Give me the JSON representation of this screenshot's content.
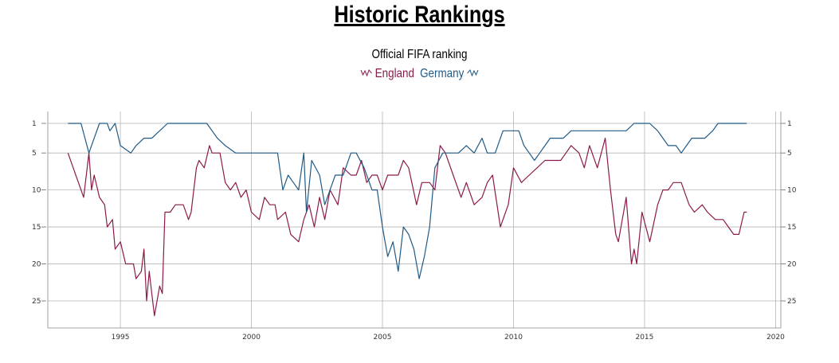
{
  "page": {
    "title": "Historic Rankings",
    "subtitle": "Official FIFA ranking",
    "legend": [
      {
        "name": "England",
        "color": "#8b1a4a",
        "icon": "wave-line-icon"
      },
      {
        "name": "Germany",
        "color": "#1f5a86",
        "icon": "wave-line-icon"
      }
    ]
  },
  "chart_data": {
    "type": "line",
    "title": "Historic Rankings",
    "subtitle": "Official FIFA ranking",
    "xlabel": "",
    "ylabel": "",
    "x_ticks": [
      "1995",
      "2000",
      "2005",
      "2010",
      "2015",
      "2020"
    ],
    "y_ticks": [
      "1",
      "5",
      "10",
      "15",
      "20",
      "25"
    ],
    "xlim": [
      1992.9,
      2020.2
    ],
    "ylim": [
      1,
      27
    ],
    "y_inverted": true,
    "grid": true,
    "legend_position": "top-center",
    "series": [
      {
        "name": "England",
        "color": "#8b1a4a",
        "points": [
          [
            1993.0,
            5
          ],
          [
            1993.6,
            11
          ],
          [
            1993.8,
            5
          ],
          [
            1993.9,
            10
          ],
          [
            1994.0,
            8
          ],
          [
            1994.2,
            11
          ],
          [
            1994.4,
            12
          ],
          [
            1994.5,
            15
          ],
          [
            1994.7,
            14
          ],
          [
            1994.8,
            18
          ],
          [
            1995.0,
            17
          ],
          [
            1995.2,
            20
          ],
          [
            1995.5,
            20
          ],
          [
            1995.6,
            22
          ],
          [
            1995.8,
            21
          ],
          [
            1995.9,
            18
          ],
          [
            1996.0,
            25
          ],
          [
            1996.1,
            21
          ],
          [
            1996.2,
            24
          ],
          [
            1996.3,
            27
          ],
          [
            1996.5,
            23
          ],
          [
            1996.6,
            24
          ],
          [
            1996.7,
            13
          ],
          [
            1996.9,
            13
          ],
          [
            1997.1,
            12
          ],
          [
            1997.4,
            12
          ],
          [
            1997.6,
            14
          ],
          [
            1997.7,
            13
          ],
          [
            1997.9,
            7
          ],
          [
            1998.0,
            6
          ],
          [
            1998.2,
            7
          ],
          [
            1998.4,
            4
          ],
          [
            1998.5,
            5
          ],
          [
            1998.8,
            5
          ],
          [
            1999.0,
            9
          ],
          [
            1999.2,
            10
          ],
          [
            1999.4,
            9
          ],
          [
            1999.6,
            11
          ],
          [
            1999.8,
            10
          ],
          [
            2000.0,
            13
          ],
          [
            2000.3,
            14
          ],
          [
            2000.5,
            11
          ],
          [
            2000.7,
            12
          ],
          [
            2000.9,
            12
          ],
          [
            2001.0,
            14
          ],
          [
            2001.3,
            13
          ],
          [
            2001.5,
            16
          ],
          [
            2001.8,
            17
          ],
          [
            2002.0,
            14
          ],
          [
            2002.2,
            12
          ],
          [
            2002.4,
            15
          ],
          [
            2002.6,
            11
          ],
          [
            2002.8,
            14
          ],
          [
            2003.0,
            10
          ],
          [
            2003.3,
            12
          ],
          [
            2003.5,
            7
          ],
          [
            2003.8,
            8
          ],
          [
            2004.0,
            8
          ],
          [
            2004.2,
            6
          ],
          [
            2004.4,
            9
          ],
          [
            2004.6,
            8
          ],
          [
            2004.8,
            8
          ],
          [
            2005.0,
            10
          ],
          [
            2005.2,
            8
          ],
          [
            2005.4,
            8
          ],
          [
            2005.6,
            8
          ],
          [
            2005.8,
            6
          ],
          [
            2006.0,
            7
          ],
          [
            2006.3,
            12
          ],
          [
            2006.5,
            9
          ],
          [
            2006.8,
            9
          ],
          [
            2007.0,
            10
          ],
          [
            2007.2,
            4
          ],
          [
            2007.4,
            5
          ],
          [
            2007.7,
            8
          ],
          [
            2008.0,
            11
          ],
          [
            2008.2,
            9
          ],
          [
            2008.5,
            12
          ],
          [
            2008.8,
            11
          ],
          [
            2009.0,
            9
          ],
          [
            2009.2,
            8
          ],
          [
            2009.5,
            15
          ],
          [
            2009.8,
            12
          ],
          [
            2010.0,
            7
          ],
          [
            2010.3,
            9
          ],
          [
            2010.6,
            8
          ],
          [
            2010.9,
            7
          ],
          [
            2011.2,
            6
          ],
          [
            2011.5,
            6
          ],
          [
            2011.8,
            6
          ],
          [
            2012.0,
            5
          ],
          [
            2012.2,
            4
          ],
          [
            2012.5,
            5
          ],
          [
            2012.7,
            7
          ],
          [
            2012.9,
            4
          ],
          [
            2013.2,
            7
          ],
          [
            2013.5,
            3
          ],
          [
            2013.7,
            10
          ],
          [
            2013.8,
            13
          ],
          [
            2013.9,
            16
          ],
          [
            2014.0,
            17
          ],
          [
            2014.3,
            11
          ],
          [
            2014.5,
            20
          ],
          [
            2014.6,
            18
          ],
          [
            2014.7,
            20
          ],
          [
            2014.9,
            13
          ],
          [
            2015.2,
            17
          ],
          [
            2015.5,
            12
          ],
          [
            2015.7,
            10
          ],
          [
            2015.9,
            10
          ],
          [
            2016.1,
            9
          ],
          [
            2016.4,
            9
          ],
          [
            2016.7,
            12
          ],
          [
            2016.9,
            13
          ],
          [
            2017.2,
            12
          ],
          [
            2017.4,
            13
          ],
          [
            2017.7,
            14
          ],
          [
            2018.0,
            14
          ],
          [
            2018.2,
            15
          ],
          [
            2018.4,
            16
          ],
          [
            2018.6,
            16
          ],
          [
            2018.8,
            13
          ],
          [
            2018.9,
            13
          ]
        ]
      },
      {
        "name": "Germany",
        "color": "#1f5a86",
        "points": [
          [
            1993.0,
            1
          ],
          [
            1993.5,
            1
          ],
          [
            1993.8,
            5
          ],
          [
            1994.0,
            3
          ],
          [
            1994.2,
            1
          ],
          [
            1994.5,
            1
          ],
          [
            1994.6,
            2
          ],
          [
            1994.8,
            1
          ],
          [
            1995.0,
            4
          ],
          [
            1995.4,
            5
          ],
          [
            1995.6,
            4
          ],
          [
            1995.9,
            3
          ],
          [
            1996.2,
            3
          ],
          [
            1996.5,
            2
          ],
          [
            1996.8,
            1
          ],
          [
            1997.0,
            1
          ],
          [
            1997.3,
            1
          ],
          [
            1997.6,
            1
          ],
          [
            1998.0,
            1
          ],
          [
            1998.3,
            1
          ],
          [
            1998.5,
            2
          ],
          [
            1998.7,
            3
          ],
          [
            1999.0,
            4
          ],
          [
            1999.4,
            5
          ],
          [
            1999.8,
            5
          ],
          [
            2000.1,
            5
          ],
          [
            2000.4,
            5
          ],
          [
            2000.7,
            5
          ],
          [
            2001.0,
            5
          ],
          [
            2001.2,
            10
          ],
          [
            2001.4,
            8
          ],
          [
            2001.6,
            9
          ],
          [
            2001.8,
            10
          ],
          [
            2002.0,
            5
          ],
          [
            2002.1,
            13
          ],
          [
            2002.3,
            6
          ],
          [
            2002.6,
            8
          ],
          [
            2002.8,
            12
          ],
          [
            2003.0,
            10
          ],
          [
            2003.2,
            8
          ],
          [
            2003.5,
            8
          ],
          [
            2003.8,
            5
          ],
          [
            2004.0,
            5
          ],
          [
            2004.3,
            7
          ],
          [
            2004.6,
            10
          ],
          [
            2004.8,
            10
          ],
          [
            2005.0,
            15
          ],
          [
            2005.2,
            19
          ],
          [
            2005.4,
            17
          ],
          [
            2005.6,
            21
          ],
          [
            2005.8,
            15
          ],
          [
            2006.0,
            16
          ],
          [
            2006.2,
            18
          ],
          [
            2006.4,
            22
          ],
          [
            2006.6,
            19
          ],
          [
            2006.8,
            15
          ],
          [
            2007.0,
            7
          ],
          [
            2007.3,
            5
          ],
          [
            2007.6,
            5
          ],
          [
            2007.9,
            5
          ],
          [
            2008.2,
            4
          ],
          [
            2008.5,
            5
          ],
          [
            2008.8,
            3
          ],
          [
            2009.0,
            5
          ],
          [
            2009.3,
            5
          ],
          [
            2009.6,
            2
          ],
          [
            2009.9,
            2
          ],
          [
            2010.2,
            2
          ],
          [
            2010.4,
            4
          ],
          [
            2010.6,
            5
          ],
          [
            2010.8,
            6
          ],
          [
            2011.0,
            5
          ],
          [
            2011.2,
            4
          ],
          [
            2011.4,
            3
          ],
          [
            2011.6,
            3
          ],
          [
            2011.9,
            3
          ],
          [
            2012.2,
            2
          ],
          [
            2012.5,
            2
          ],
          [
            2012.8,
            2
          ],
          [
            2013.1,
            2
          ],
          [
            2013.4,
            2
          ],
          [
            2013.7,
            2
          ],
          [
            2014.0,
            2
          ],
          [
            2014.3,
            2
          ],
          [
            2014.6,
            1
          ],
          [
            2014.9,
            1
          ],
          [
            2015.2,
            1
          ],
          [
            2015.5,
            2
          ],
          [
            2015.7,
            3
          ],
          [
            2015.9,
            4
          ],
          [
            2016.2,
            4
          ],
          [
            2016.4,
            5
          ],
          [
            2016.6,
            4
          ],
          [
            2016.8,
            3
          ],
          [
            2017.0,
            3
          ],
          [
            2017.3,
            3
          ],
          [
            2017.6,
            2
          ],
          [
            2017.8,
            1
          ],
          [
            2018.0,
            1
          ],
          [
            2018.3,
            1
          ],
          [
            2018.6,
            1
          ],
          [
            2018.9,
            1
          ]
        ]
      }
    ]
  }
}
